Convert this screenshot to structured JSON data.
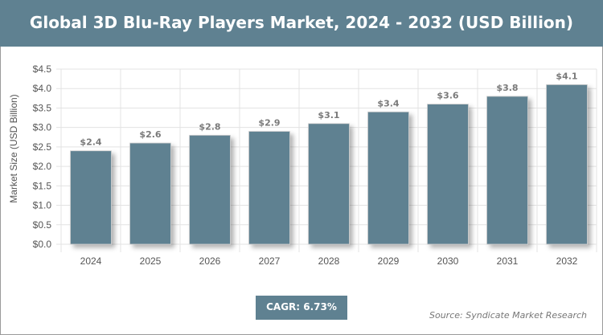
{
  "header": {
    "title": "Global 3D Blu-Ray Players Market, 2024 - 2032 (USD Billion)"
  },
  "chart_data": {
    "type": "bar",
    "title": "Global 3D Blu-Ray Players Market, 2024 - 2032 (USD Billion)",
    "xlabel": "",
    "ylabel": "Market Size (USD Billion)",
    "categories": [
      "2024",
      "2025",
      "2026",
      "2027",
      "2028",
      "2029",
      "2030",
      "2031",
      "2032"
    ],
    "values": [
      2.4,
      2.6,
      2.8,
      2.9,
      3.1,
      3.4,
      3.6,
      3.8,
      4.1
    ],
    "data_labels": [
      "$2.4",
      "$2.6",
      "$2.8",
      "$2.9",
      "$3.1",
      "$3.4",
      "$3.6",
      "$3.8",
      "$4.1"
    ],
    "ylim": [
      0,
      4.5
    ],
    "yticks": [
      "$0.0",
      "$0.5",
      "$1.0",
      "$1.5",
      "$2.0",
      "$2.5",
      "$3.0",
      "$3.5",
      "$4.0",
      "$4.5"
    ],
    "grid": true,
    "bar_color": "#5f8191"
  },
  "footer": {
    "cagr": "CAGR: 6.73%",
    "source": "Source: Syndicate Market Research"
  }
}
